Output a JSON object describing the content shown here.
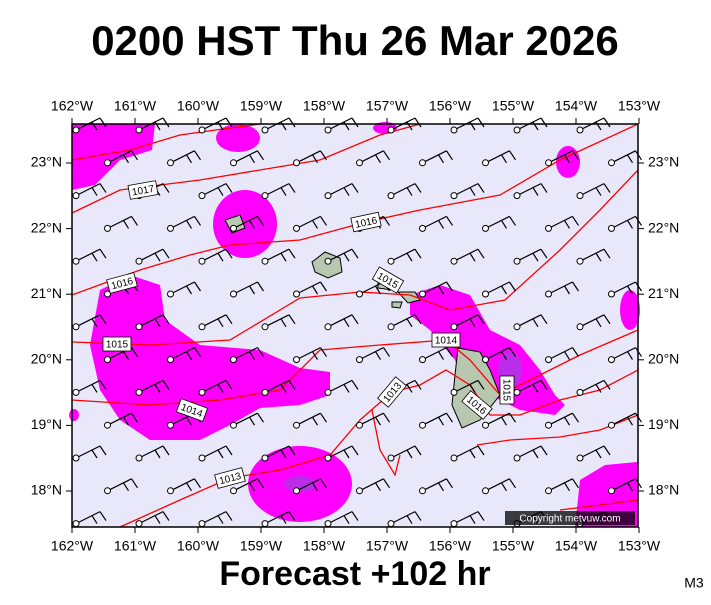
{
  "title": "0200 HST Thu 26 Mar 2026",
  "footer": "Forecast +102 hr",
  "code": "M3",
  "copyright": "Copyright metvuw.com",
  "lon_labels": [
    "162°W",
    "161°W",
    "160°W",
    "159°W",
    "158°W",
    "157°W",
    "156°W",
    "155°W",
    "154°W",
    "153°W"
  ],
  "lat_labels": [
    "23°N",
    "22°N",
    "21°N",
    "20°N",
    "19°N",
    "18°N"
  ],
  "isobar_labels": [
    "1017",
    "1016",
    "1016",
    "1015",
    "1015",
    "1014",
    "1014",
    "1013",
    "1013",
    "1016",
    "1015"
  ]
}
